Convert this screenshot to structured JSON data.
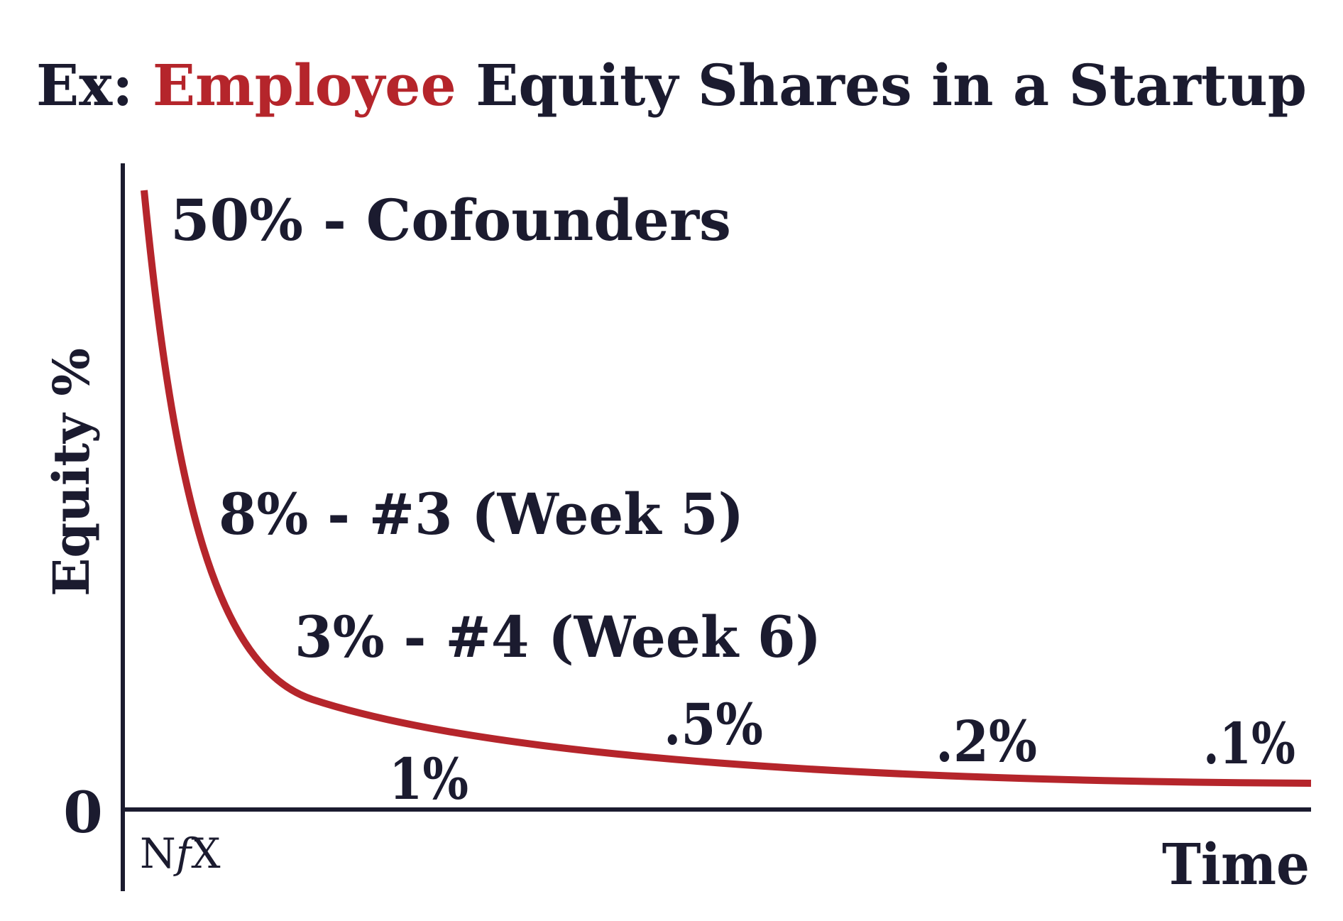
{
  "colors": {
    "text": "#1b1b2f",
    "accent": "#b5252b",
    "background": "#ffffff"
  },
  "logo": "NfX",
  "chart_data": {
    "type": "line",
    "title": {
      "prefix": "Ex: ",
      "highlight": "Employee",
      "suffix": " Equity Shares in a Startup"
    },
    "xlabel": "Time",
    "ylabel": "Equity %",
    "y_origin_label": "0",
    "grid": false,
    "legend": "none",
    "annotations": [
      {
        "text": "50% - Cofounders",
        "value": 50
      },
      {
        "text": "8% - #3 (Week 5)",
        "value": 8
      },
      {
        "text": "3% - #4 (Week 6)",
        "value": 3
      },
      {
        "text": "1%",
        "value": 1
      },
      {
        "text": ".5%",
        "value": 0.5
      },
      {
        "text": ".2%",
        "value": 0.2
      },
      {
        "text": ".1%",
        "value": 0.1
      }
    ]
  }
}
